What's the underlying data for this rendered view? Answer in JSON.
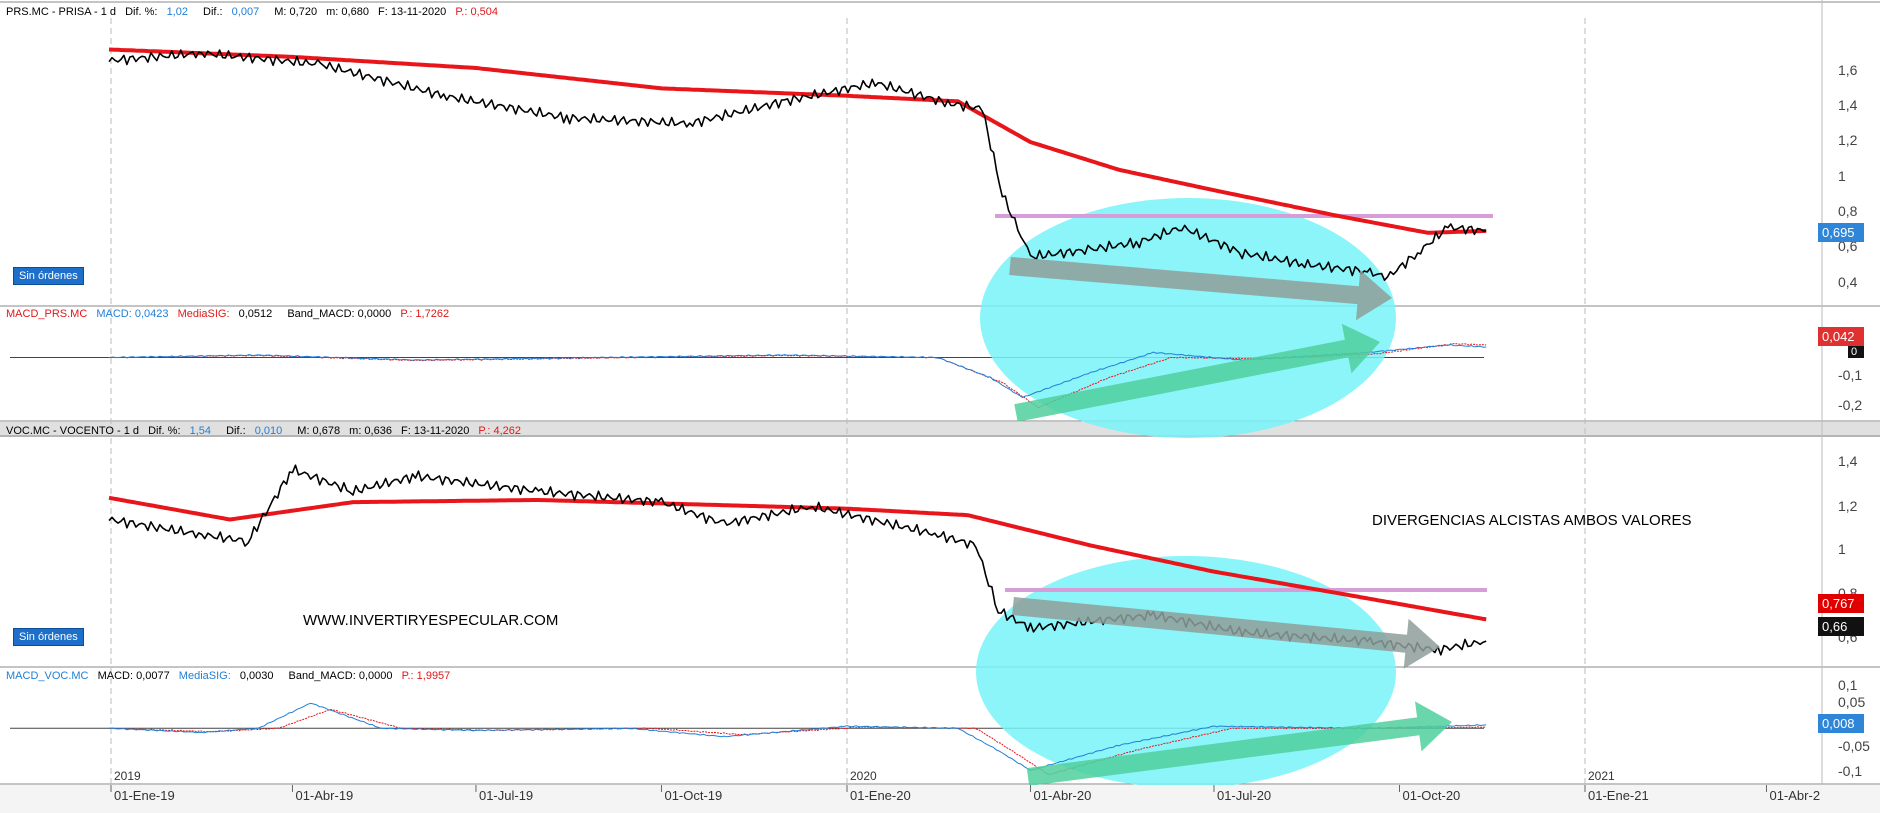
{
  "panels": [
    {
      "header": {
        "symbol": "PRS.MC - PRISA - 1 d",
        "dif_pct_label": "Dif. %:",
        "dif_pct_value": "1,02",
        "dif_label": "Dif.:",
        "dif_value": "0,007",
        "max": "M: 0,720",
        "min": "m: 0,680",
        "date": "F: 13-11-2020",
        "p": "P.: 0,504"
      },
      "badge": "Sin órdenes",
      "price_tag": "0,695"
    },
    {
      "header": {
        "symbol": "MACD_PRS.MC",
        "macd": "MACD: 0,0423",
        "signal_label": "MediaSIG:",
        "signal_value": "0,0512",
        "band": "Band_MACD: 0,0000",
        "p": "P.: 1,7262"
      },
      "price_tag": "0,042",
      "price_tag_2": "0"
    },
    {
      "header": {
        "symbol": "VOC.MC - VOCENTO - 1 d",
        "dif_pct_label": "Dif. %:",
        "dif_pct_value": "1,54",
        "dif_label": "Dif.:",
        "dif_value": "0,010",
        "max": "M: 0,678",
        "min": "m: 0,636",
        "date": "F: 13-11-2020",
        "p": "P.: 4,262"
      },
      "badge": "Sin órdenes",
      "price_tag": "0,767",
      "price_tag_2": "0,66"
    },
    {
      "header": {
        "symbol": "MACD_VOC.MC",
        "macd": "MACD: 0,0077",
        "signal_label": "MediaSIG:",
        "signal_value": "0,0030",
        "band": "Band_MACD: 0,0000",
        "p": "P.: 1,9957"
      },
      "price_tag": "0,008"
    }
  ],
  "annotations": {
    "title": "DIVERGENCIAS ALCISTAS AMBOS VALORES",
    "website": "WWW.INVERTIRYESPECULAR.COM"
  },
  "colors": {
    "price": "#000000",
    "moving_average": "#e8161b",
    "macd_line": "#1f7fd8",
    "signal_line": "#e8161b",
    "ellipse": "#77f3f8",
    "arrow": "#8e9e9a",
    "green_arrow": "#4fcf9c",
    "resistance": "#d59ed9",
    "tag_blue": "#2f86d8",
    "tag_red": "#e03030",
    "tag_black": "#111111"
  },
  "chart_data": [
    {
      "type": "line",
      "title": "PRS.MC - PRISA",
      "yticks": [
        "1,6",
        "1,4",
        "1,2",
        "1",
        "0,8",
        "0,6",
        "0,4"
      ],
      "ylim": [
        0.3,
        1.85
      ],
      "series": [
        {
          "x": [
            "2018-12-31",
            "2019-02-15",
            "2019-04-15",
            "2019-06-15",
            "2019-08-15",
            "2019-10-15",
            "2019-12-01",
            "2020-01-15",
            "2020-02-20",
            "2020-03-08",
            "2020-03-18",
            "2020-04-01",
            "2020-05-01",
            "2020-05-25",
            "2020-06-15",
            "2020-07-15",
            "2020-08-15",
            "2020-09-15",
            "2020-09-25",
            "2020-10-10",
            "2020-10-25",
            "2020-11-13"
          ],
          "values": [
            1.62,
            1.66,
            1.6,
            1.43,
            1.31,
            1.28,
            1.4,
            1.5,
            1.39,
            1.36,
            0.9,
            0.56,
            0.6,
            0.64,
            0.72,
            0.58,
            0.52,
            0.48,
            0.45,
            0.58,
            0.72,
            0.7
          ]
        },
        {
          "x": [
            "2018-12-31",
            "2019-04-01",
            "2019-07-01",
            "2019-10-01",
            "2020-01-01",
            "2020-02-25",
            "2020-04-01",
            "2020-05-15",
            "2020-07-01",
            "2020-09-01",
            "2020-10-15",
            "2020-11-13"
          ],
          "values": [
            1.68,
            1.64,
            1.58,
            1.47,
            1.43,
            1.4,
            1.18,
            1.03,
            0.92,
            0.78,
            0.69,
            0.7
          ]
        }
      ]
    },
    {
      "type": "line",
      "title": "MACD_PRS.MC",
      "yticks": [
        "-0,1",
        "-0,2"
      ],
      "ylim": [
        -0.25,
        0.15
      ],
      "series": [
        {
          "x": [
            "2018-12-31",
            "2019-03-15",
            "2019-06-01",
            "2019-09-01",
            "2019-12-01",
            "2020-02-15",
            "2020-03-12",
            "2020-03-28",
            "2020-05-01",
            "2020-06-01",
            "2020-07-15",
            "2020-09-15",
            "2020-10-25",
            "2020-11-13"
          ],
          "values": [
            0.0,
            0.01,
            -0.01,
            0.0,
            0.01,
            0.0,
            -0.08,
            -0.16,
            -0.06,
            0.02,
            -0.01,
            0.02,
            0.05,
            0.042
          ]
        },
        {
          "x": [
            "2018-12-31",
            "2019-03-15",
            "2019-06-01",
            "2019-09-01",
            "2019-12-01",
            "2020-02-15",
            "2020-03-18",
            "2020-04-05",
            "2020-05-10",
            "2020-06-10",
            "2020-07-25",
            "2020-09-20",
            "2020-10-28",
            "2020-11-13"
          ],
          "values": [
            0.0,
            0.008,
            -0.012,
            -0.002,
            0.008,
            0.0,
            -0.1,
            -0.2,
            -0.08,
            0.0,
            -0.005,
            0.015,
            0.055,
            0.05
          ]
        }
      ]
    },
    {
      "type": "line",
      "title": "VOC.MC - VOCENTO",
      "yticks": [
        "1,4",
        "1,2",
        "1",
        "0,8",
        "0,6"
      ],
      "ylim": [
        0.55,
        1.6
      ],
      "series": [
        {
          "x": [
            "2018-12-31",
            "2019-02-15",
            "2019-03-10",
            "2019-04-01",
            "2019-05-01",
            "2019-06-01",
            "2019-08-01",
            "2019-10-01",
            "2019-11-01",
            "2019-12-15",
            "2020-02-15",
            "2020-03-05",
            "2020-03-16",
            "2020-04-01",
            "2020-05-10",
            "2020-06-01",
            "2020-07-15",
            "2020-09-15",
            "2020-10-20",
            "2020-11-13"
          ],
          "values": [
            1.22,
            1.15,
            1.12,
            1.45,
            1.35,
            1.42,
            1.35,
            1.3,
            1.2,
            1.28,
            1.15,
            1.1,
            0.8,
            0.72,
            0.76,
            0.78,
            0.7,
            0.66,
            0.62,
            0.66
          ]
        },
        {
          "x": [
            "2018-12-31",
            "2019-03-01",
            "2019-05-01",
            "2019-08-01",
            "2020-01-01",
            "2020-03-01",
            "2020-05-01",
            "2020-07-01",
            "2020-09-01",
            "2020-11-13"
          ],
          "values": [
            1.32,
            1.22,
            1.3,
            1.31,
            1.27,
            1.24,
            1.1,
            0.98,
            0.88,
            0.76
          ]
        }
      ]
    },
    {
      "type": "line",
      "title": "MACD_VOC.MC",
      "yticks": [
        "0,1",
        "0,05",
        "-0,05",
        "-0,1"
      ],
      "ylim": [
        -0.13,
        0.11
      ],
      "series": [
        {
          "x": [
            "2018-12-31",
            "2019-02-15",
            "2019-03-15",
            "2019-04-10",
            "2019-05-15",
            "2019-07-01",
            "2019-09-15",
            "2019-11-01",
            "2020-01-01",
            "2020-02-25",
            "2020-03-15",
            "2020-04-01",
            "2020-05-15",
            "2020-07-01",
            "2020-09-15",
            "2020-11-13"
          ],
          "values": [
            0.0,
            -0.01,
            0.0,
            0.06,
            0.0,
            -0.005,
            0.0,
            -0.02,
            0.005,
            0.0,
            -0.05,
            -0.1,
            -0.04,
            0.005,
            0.0,
            0.008
          ]
        },
        {
          "x": [
            "2018-12-31",
            "2019-02-20",
            "2019-03-25",
            "2019-04-20",
            "2019-05-25",
            "2019-07-10",
            "2019-09-25",
            "2019-11-10",
            "2020-01-10",
            "2020-03-05",
            "2020-03-25",
            "2020-04-10",
            "2020-05-25",
            "2020-07-10",
            "2020-09-25",
            "2020-11-13"
          ],
          "values": [
            0.0,
            -0.008,
            0.0,
            0.045,
            0.0,
            -0.005,
            0.0,
            -0.015,
            0.003,
            0.0,
            -0.06,
            -0.11,
            -0.05,
            0.0,
            0.0,
            0.003
          ]
        }
      ]
    }
  ],
  "xaxis": {
    "years": [
      "2019",
      "2020",
      "2021"
    ],
    "ticks": [
      "01-Ene-19",
      "01-Abr-19",
      "01-Jul-19",
      "01-Oct-19",
      "01-Ene-20",
      "01-Abr-20",
      "01-Jul-20",
      "01-Oct-20",
      "01-Ene-21",
      "01-Abr-2"
    ]
  }
}
